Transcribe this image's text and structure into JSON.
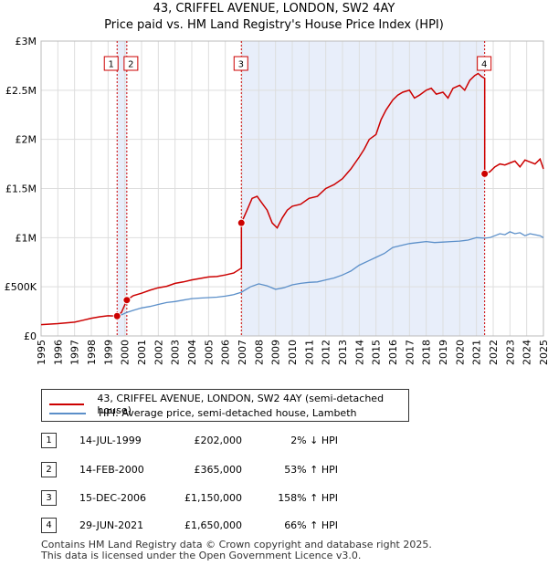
{
  "header": {
    "title_line1": "43, CRIFFEL AVENUE, LONDON, SW2 4AY",
    "title_line2": "Price paid vs. HM Land Registry's House Price Index (HPI)"
  },
  "colors": {
    "price_line": "#cc0000",
    "hpi_line": "#5b8fc9",
    "band": "#e8eefa",
    "grid": "#dddddd"
  },
  "chart_data": {
    "type": "line",
    "title": "43, CRIFFEL AVENUE, LONDON, SW2 4AY — Price paid vs. HM Land Registry's House Price Index (HPI)",
    "xlim": [
      1995,
      2025
    ],
    "ylim": [
      0,
      3000000
    ],
    "y_ticks": [
      {
        "value": 0,
        "label": "£0"
      },
      {
        "value": 500000,
        "label": "£500K"
      },
      {
        "value": 1000000,
        "label": "£1M"
      },
      {
        "value": 1500000,
        "label": "£1.5M"
      },
      {
        "value": 2000000,
        "label": "£2M"
      },
      {
        "value": 2500000,
        "label": "£2.5M"
      },
      {
        "value": 3000000,
        "label": "£3M"
      }
    ],
    "x_ticks": [
      "1995",
      "1996",
      "1997",
      "1998",
      "1999",
      "2000",
      "2001",
      "2002",
      "2003",
      "2004",
      "2005",
      "2006",
      "2007",
      "2008",
      "2009",
      "2010",
      "2011",
      "2012",
      "2013",
      "2014",
      "2015",
      "2016",
      "2017",
      "2018",
      "2019",
      "2020",
      "2021",
      "2022",
      "2023",
      "2024",
      "2025"
    ],
    "shaded_bands": [
      [
        1999.54,
        2000.12
      ],
      [
        2006.96,
        2021.49
      ]
    ],
    "series": [
      {
        "name": "43, CRIFFEL AVENUE, LONDON, SW2 4AY (semi-detached house)",
        "color": "#cc0000",
        "x": [
          1995.0,
          1996.0,
          1997.0,
          1997.5,
          1998.0,
          1998.5,
          1999.0,
          1999.54,
          1999.54,
          1999.8,
          2000.12,
          2000.12,
          2000.5,
          2001.0,
          2001.5,
          2002.0,
          2002.5,
          2003.0,
          2003.5,
          2004.0,
          2004.5,
          2005.0,
          2005.5,
          2006.0,
          2006.5,
          2006.96,
          2006.96,
          2007.3,
          2007.6,
          2007.9,
          2008.2,
          2008.5,
          2008.8,
          2009.1,
          2009.4,
          2009.7,
          2010.0,
          2010.5,
          2011.0,
          2011.5,
          2012.0,
          2012.5,
          2013.0,
          2013.5,
          2014.0,
          2014.3,
          2014.6,
          2015.0,
          2015.3,
          2015.6,
          2016.0,
          2016.3,
          2016.6,
          2017.0,
          2017.3,
          2017.6,
          2018.0,
          2018.3,
          2018.6,
          2019.0,
          2019.3,
          2019.6,
          2020.0,
          2020.3,
          2020.6,
          2020.9,
          2021.1,
          2021.3,
          2021.49,
          2021.49,
          2021.8,
          2022.1,
          2022.4,
          2022.7,
          2023.0,
          2023.3,
          2023.6,
          2023.9,
          2024.2,
          2024.5,
          2024.8,
          2025.0
        ],
        "values": [
          115000,
          125000,
          140000,
          160000,
          180000,
          195000,
          205000,
          202000,
          202000,
          240000,
          365000,
          365000,
          410000,
          435000,
          465000,
          490000,
          505000,
          535000,
          550000,
          570000,
          585000,
          600000,
          605000,
          620000,
          640000,
          690000,
          1150000,
          1280000,
          1400000,
          1420000,
          1350000,
          1280000,
          1150000,
          1100000,
          1200000,
          1280000,
          1320000,
          1340000,
          1400000,
          1420000,
          1500000,
          1540000,
          1600000,
          1700000,
          1820000,
          1900000,
          2000000,
          2050000,
          2200000,
          2300000,
          2400000,
          2450000,
          2480000,
          2500000,
          2420000,
          2450000,
          2500000,
          2520000,
          2460000,
          2480000,
          2420000,
          2520000,
          2550000,
          2500000,
          2600000,
          2650000,
          2670000,
          2640000,
          2620000,
          1650000,
          1670000,
          1720000,
          1750000,
          1740000,
          1760000,
          1780000,
          1720000,
          1790000,
          1770000,
          1750000,
          1800000,
          1700000
        ]
      },
      {
        "name": "HPI: Average price, semi-detached house, Lambeth",
        "color": "#5b8fc9",
        "x": [
          1999.54,
          1999.8,
          2000.12,
          2000.5,
          2001.0,
          2001.5,
          2002.0,
          2002.5,
          2003.0,
          2003.5,
          2004.0,
          2004.5,
          2005.0,
          2005.5,
          2006.0,
          2006.5,
          2006.96,
          2007.5,
          2008.0,
          2008.5,
          2009.0,
          2009.5,
          2010.0,
          2010.5,
          2011.0,
          2011.5,
          2012.0,
          2012.5,
          2013.0,
          2013.5,
          2014.0,
          2014.5,
          2015.0,
          2015.5,
          2016.0,
          2016.5,
          2017.0,
          2017.5,
          2018.0,
          2018.5,
          2019.0,
          2019.5,
          2020.0,
          2020.5,
          2021.0,
          2021.49,
          2021.8,
          2022.1,
          2022.4,
          2022.7,
          2023.0,
          2023.3,
          2023.6,
          2023.9,
          2024.2,
          2024.5,
          2024.8,
          2025.0
        ],
        "values": [
          205000,
          215000,
          240000,
          260000,
          285000,
          300000,
          320000,
          340000,
          350000,
          365000,
          380000,
          385000,
          390000,
          395000,
          405000,
          420000,
          445000,
          500000,
          530000,
          510000,
          475000,
          490000,
          520000,
          535000,
          545000,
          550000,
          570000,
          590000,
          620000,
          660000,
          720000,
          760000,
          800000,
          840000,
          900000,
          920000,
          940000,
          950000,
          960000,
          950000,
          955000,
          960000,
          965000,
          975000,
          1000000,
          995000,
          1000000,
          1020000,
          1040000,
          1030000,
          1060000,
          1040000,
          1050000,
          1020000,
          1040000,
          1030000,
          1020000,
          1000000
        ]
      }
    ],
    "transactions": [
      {
        "id": "1",
        "x": 1999.54,
        "price": 202000
      },
      {
        "id": "2",
        "x": 2000.12,
        "price": 365000
      },
      {
        "id": "3",
        "x": 2006.96,
        "price": 1150000
      },
      {
        "id": "4",
        "x": 2021.49,
        "price": 1650000
      }
    ]
  },
  "legend": {
    "price_label": "43, CRIFFEL AVENUE, LONDON, SW2 4AY (semi-detached house)",
    "hpi_label": "HPI: Average price, semi-detached house, Lambeth"
  },
  "table": [
    {
      "num": "1",
      "date": "14-JUL-1999",
      "price": "£202,000",
      "hpi": "2% ↓ HPI"
    },
    {
      "num": "2",
      "date": "14-FEB-2000",
      "price": "£365,000",
      "hpi": "53% ↑ HPI"
    },
    {
      "num": "3",
      "date": "15-DEC-2006",
      "price": "£1,150,000",
      "hpi": "158% ↑ HPI"
    },
    {
      "num": "4",
      "date": "29-JUN-2021",
      "price": "£1,650,000",
      "hpi": "66% ↑ HPI"
    }
  ],
  "footer": {
    "line1": "Contains HM Land Registry data © Crown copyright and database right 2025.",
    "line2": "This data is licensed under the Open Government Licence v3.0."
  }
}
